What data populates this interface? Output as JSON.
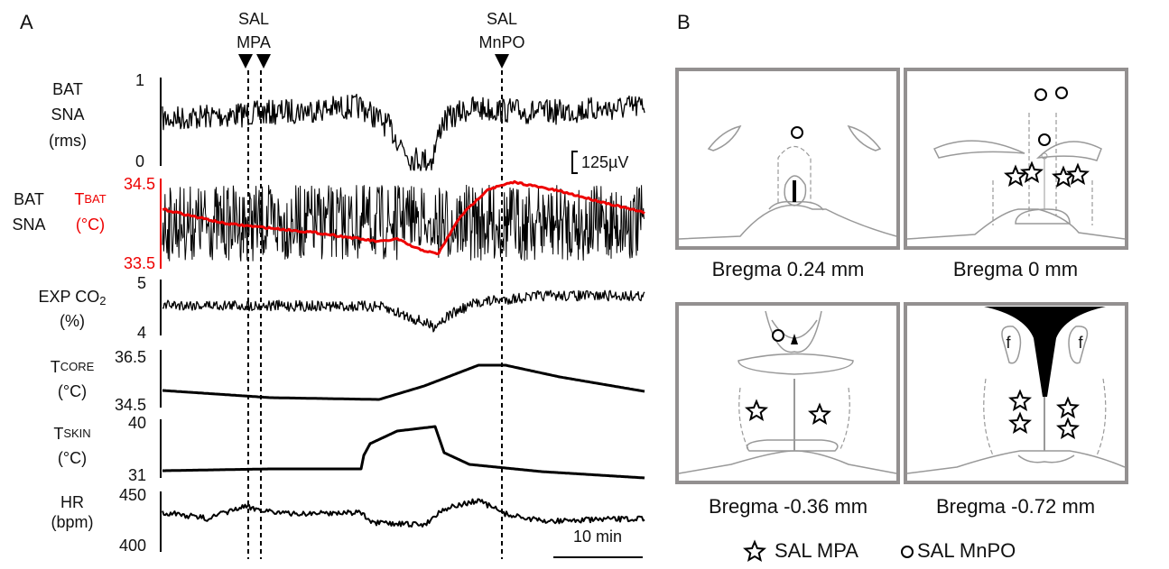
{
  "panel_a": {
    "label": "A",
    "events": [
      {
        "line1": "SAL",
        "line2": "MPA"
      },
      {
        "line1": "SAL",
        "line2": "MnPO"
      }
    ],
    "traces": [
      {
        "lines": [
          "BAT",
          "SNA",
          "(rms)"
        ],
        "ticks": [
          "1",
          "0"
        ]
      },
      {
        "lines": [
          "BAT",
          "SNA"
        ],
        "temp_main": "T",
        "temp_sub": "BAT",
        "temp_unit": "(°C)",
        "ticks": [
          "34.5",
          "33.5"
        ]
      },
      {
        "main": "EXP CO",
        "sub": "2",
        "unit": "(%)",
        "ticks": [
          "5",
          "4"
        ]
      },
      {
        "main": "T",
        "sub": "CORE",
        "unit": "(°C)",
        "ticks": [
          "36.5",
          "34.5"
        ]
      },
      {
        "main": "T",
        "sub": "SKIN",
        "unit": "(°C)",
        "ticks": [
          "40",
          "31"
        ]
      },
      {
        "main": "HR",
        "unit": "(bpm)",
        "ticks": [
          "450",
          "400"
        ]
      }
    ],
    "amplitude_bar": "125µV",
    "time_bar": "10 min"
  },
  "panel_b": {
    "label": "B",
    "sections": [
      "Bregma 0.24 mm",
      "Bregma 0 mm",
      "Bregma -0.36 mm",
      "Bregma -0.72 mm"
    ],
    "f_label": "f",
    "legend": [
      "SAL MPA",
      "SAL MnPO"
    ]
  }
}
